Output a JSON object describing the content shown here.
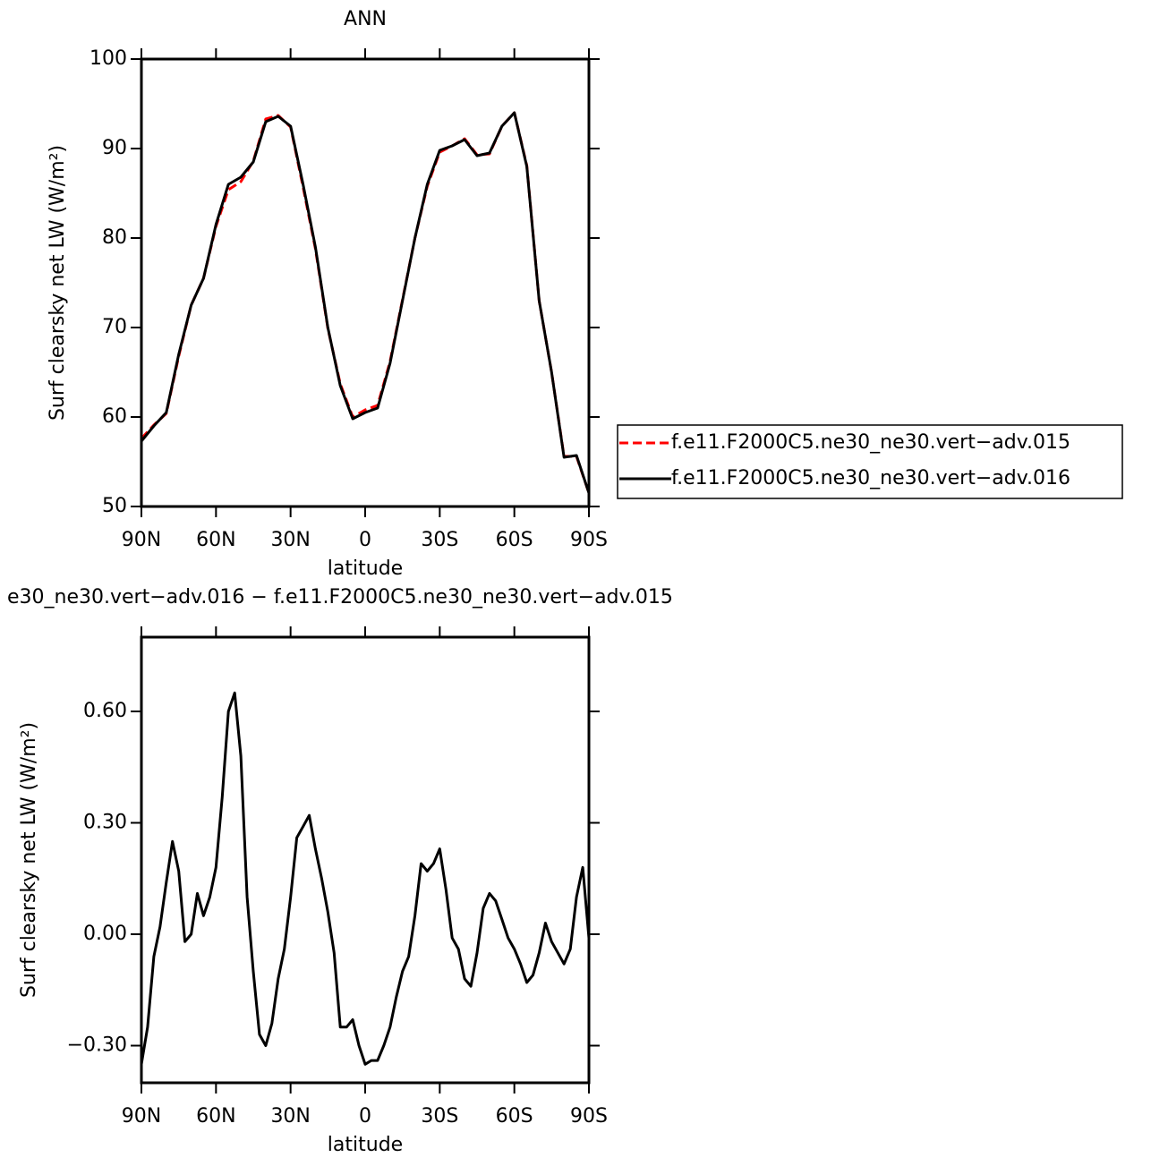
{
  "chart_data": [
    {
      "type": "line",
      "title": "ANN",
      "xlabel": "latitude",
      "ylabel": "Surf clearsky net LW (W/m²)",
      "x": [
        90,
        85,
        80,
        75,
        70,
        65,
        60,
        55,
        50,
        45,
        40,
        35,
        30,
        25,
        20,
        15,
        10,
        5,
        0,
        -5,
        -10,
        -15,
        -20,
        -25,
        -30,
        -35,
        -40,
        -45,
        -50,
        -55,
        -60,
        -65,
        -70,
        -75,
        -80,
        -85,
        -90
      ],
      "series": [
        {
          "name": "f.e11.F2000C5.ne30_ne30.vert−adv.015",
          "color": "#ff0000",
          "linestyle": "dashed",
          "values": [
            57.6,
            59.1,
            60.4,
            66.8,
            72.5,
            75.5,
            81.3,
            85.4,
            86.3,
            88.6,
            93.3,
            93.7,
            92.4,
            85.7,
            78.8,
            69.9,
            63.7,
            60.0,
            60.8,
            61.3,
            66.2,
            73.1,
            80,
            85.8,
            89.6,
            90.3,
            91.1,
            89.3,
            89.4,
            92.5,
            94,
            88.1,
            73,
            65,
            55.6,
            55.6,
            51.5
          ]
        },
        {
          "name": "f.e11.F2000C5.ne30_ne30.vert−adv.016",
          "color": "#000000",
          "linestyle": "solid",
          "values": [
            57.3,
            59.0,
            60.5,
            67,
            72.5,
            75.5,
            81.5,
            86,
            86.8,
            88.5,
            93,
            93.6,
            92.5,
            86,
            79,
            70,
            63.5,
            59.8,
            60.5,
            61,
            66,
            73,
            80,
            86,
            89.8,
            90.3,
            91,
            89.2,
            89.5,
            92.5,
            94,
            88,
            73,
            65,
            55.5,
            55.7,
            51.5
          ]
        }
      ],
      "xlim": [
        90,
        -90
      ],
      "ylim": [
        50,
        100
      ],
      "xticks": [
        {
          "value": 90,
          "label": "90N"
        },
        {
          "value": 60,
          "label": "60N"
        },
        {
          "value": 30,
          "label": "30N"
        },
        0,
        {
          "value": -30,
          "label": "30S"
        },
        {
          "value": -60,
          "label": "60S"
        },
        {
          "value": -90,
          "label": "90S"
        }
      ],
      "yticks": [
        50,
        60,
        70,
        80,
        90,
        100
      ],
      "legend": "right"
    },
    {
      "type": "line",
      "title": "e30_ne30.vert−adv.016 − f.e11.F2000C5.ne30_ne30.vert−adv.015",
      "xlabel": "latitude",
      "ylabel": "Surf clearsky net LW (W/m²)",
      "x": [
        90,
        87.5,
        85,
        82.5,
        80,
        77.5,
        75,
        72.5,
        70,
        67.5,
        65,
        62.5,
        60,
        57.5,
        55,
        52.5,
        50,
        47.5,
        45,
        42.5,
        40,
        37.5,
        35,
        32.5,
        30,
        27.5,
        25,
        22.5,
        20,
        17.5,
        15,
        12.5,
        10,
        7.5,
        5,
        2.5,
        0,
        -2.5,
        -5,
        -7.5,
        -10,
        -12.5,
        -15,
        -17.5,
        -20,
        -22.5,
        -25,
        -27.5,
        -30,
        -32.5,
        -35,
        -37.5,
        -40,
        -42.5,
        -45,
        -47.5,
        -50,
        -52.5,
        -55,
        -57.5,
        -60,
        -62.5,
        -65,
        -67.5,
        -70,
        -72.5,
        -75,
        -77.5,
        -80,
        -82.5,
        -85,
        -87.5,
        -90
      ],
      "series": [
        {
          "color": "#000000",
          "linestyle": "solid",
          "values": [
            -0.35,
            -0.25,
            -0.06,
            0.02,
            0.14,
            0.25,
            0.17,
            -0.02,
            0.0,
            0.11,
            0.05,
            0.1,
            0.18,
            0.37,
            0.6,
            0.65,
            0.48,
            0.1,
            -0.1,
            -0.27,
            -0.3,
            -0.24,
            -0.12,
            -0.04,
            0.1,
            0.26,
            0.29,
            0.32,
            0.23,
            0.15,
            0.06,
            -0.05,
            -0.25,
            -0.25,
            -0.23,
            -0.3,
            -0.35,
            -0.34,
            -0.34,
            -0.3,
            -0.25,
            -0.17,
            -0.1,
            -0.06,
            0.05,
            0.19,
            0.17,
            0.19,
            0.23,
            0.12,
            -0.01,
            -0.04,
            -0.12,
            -0.14,
            -0.05,
            0.07,
            0.11,
            0.09,
            0.04,
            -0.01,
            -0.04,
            -0.08,
            -0.13,
            -0.11,
            -0.05,
            0.03,
            -0.02,
            -0.05,
            -0.08,
            -0.04,
            0.1,
            0.18,
            -0.01
          ]
        }
      ],
      "xlim": [
        90,
        -90
      ],
      "ylim": [
        -0.4,
        0.8
      ],
      "xticks": [
        {
          "value": 90,
          "label": "90N"
        },
        {
          "value": 60,
          "label": "60N"
        },
        {
          "value": 30,
          "label": "30N"
        },
        0,
        {
          "value": -30,
          "label": "30S"
        },
        {
          "value": -60,
          "label": "60S"
        },
        {
          "value": -90,
          "label": "90S"
        }
      ],
      "yticks": [
        {
          "value": -0.3,
          "label": "−0.30"
        },
        {
          "value": 0,
          "label": "0.00"
        },
        {
          "value": 0.3,
          "label": "0.30"
        },
        {
          "value": 0.6,
          "label": "0.60"
        }
      ]
    }
  ]
}
